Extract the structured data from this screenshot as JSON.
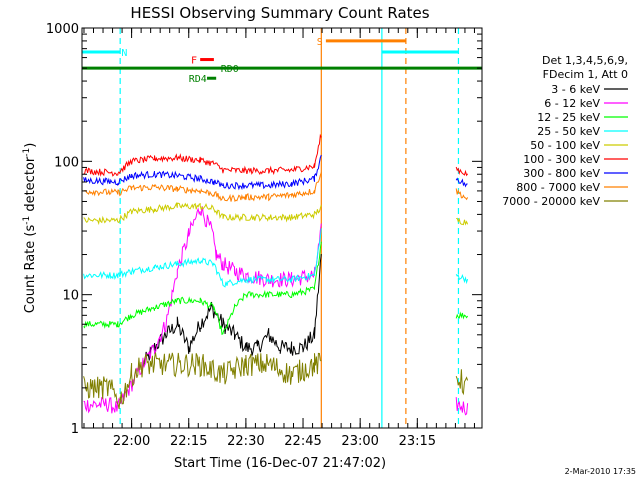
{
  "chart_data": {
    "type": "line",
    "title": "HESSI Observing Summary Count Rates",
    "xlabel": "Start Time (16-Dec-07 21:47:02)",
    "ylabel_prefix": "Count Rate (s",
    "ylabel_sup1": "-1",
    "ylabel_mid": " detector",
    "ylabel_sup2": "-1",
    "ylabel_suffix": ")",
    "y_scale": "log",
    "ylim": [
      1,
      1000
    ],
    "xlim": [
      21.783,
      23.533
    ],
    "y_ticks": [
      {
        "value": 1,
        "label": "1"
      },
      {
        "value": 10,
        "label": "10"
      },
      {
        "value": 100,
        "label": "100"
      },
      {
        "value": 1000,
        "label": "1000"
      }
    ],
    "x_ticks": [
      {
        "value": 22.0,
        "label": "22:00"
      },
      {
        "value": 22.25,
        "label": "22:15"
      },
      {
        "value": 22.5,
        "label": "22:30"
      },
      {
        "value": 22.75,
        "label": "22:45"
      },
      {
        "value": 23.0,
        "label": "23:00"
      },
      {
        "value": 23.25,
        "label": "23:15"
      }
    ],
    "legend_header": [
      "Det 1,3,4,5,6,9,",
      "FDecim 1, Att 0"
    ],
    "legend_placement": "right",
    "timestamp": "2-Mar-2010 17:35",
    "series": [
      {
        "name": "3 - 6 keV",
        "color": "#000000",
        "x": [
          21.79,
          21.95,
          22.0,
          22.05,
          22.1,
          22.15,
          22.2,
          22.25,
          22.3,
          22.35,
          22.4,
          22.45,
          22.5,
          22.55,
          22.6,
          22.65,
          22.7,
          22.75,
          22.8,
          22.83
        ],
        "y": [
          null,
          null,
          null,
          3,
          4,
          5,
          6,
          4,
          6,
          8,
          6,
          5,
          4,
          4,
          5,
          4,
          4,
          4,
          5,
          20
        ]
      },
      {
        "name": "6 - 12 keV",
        "color": "#ff00ff",
        "x": [
          21.79,
          21.9,
          21.94,
          22.05,
          22.1,
          22.15,
          22.2,
          22.25,
          22.3,
          22.35,
          22.37,
          22.4,
          22.45,
          22.5,
          22.6,
          22.7,
          22.8,
          22.83,
          23.42,
          23.47
        ],
        "y": [
          1.5,
          1.5,
          1.4,
          3,
          4,
          6,
          15,
          28,
          45,
          30,
          20,
          17,
          15,
          14,
          13,
          13,
          14,
          30,
          1.5,
          1.4
        ]
      },
      {
        "name": "12 - 25 keV",
        "color": "#00ff00",
        "x": [
          21.79,
          21.94,
          22.0,
          22.1,
          22.2,
          22.3,
          22.36,
          22.4,
          22.45,
          22.5,
          22.6,
          22.7,
          22.8,
          22.83,
          23.42,
          23.47
        ],
        "y": [
          6,
          6,
          7,
          8,
          9,
          9,
          8,
          5,
          8,
          10,
          10,
          10,
          11,
          25,
          7,
          7
        ]
      },
      {
        "name": "25 - 50 keV",
        "color": "#00ffff",
        "x": [
          21.79,
          21.94,
          22.0,
          22.1,
          22.2,
          22.3,
          22.36,
          22.4,
          22.5,
          22.6,
          22.7,
          22.8,
          22.83,
          23.42,
          23.47
        ],
        "y": [
          14,
          14,
          15,
          16,
          17,
          18,
          17,
          12,
          13,
          13,
          13,
          14,
          30,
          14,
          13
        ]
      },
      {
        "name": "50 - 100 keV",
        "color": "#cccc00",
        "x": [
          21.79,
          21.94,
          22.0,
          22.1,
          22.2,
          22.3,
          22.36,
          22.4,
          22.5,
          22.6,
          22.7,
          22.8,
          22.83,
          23.42,
          23.47
        ],
        "y": [
          36,
          36,
          42,
          44,
          46,
          46,
          44,
          38,
          38,
          38,
          38,
          40,
          45,
          36,
          35
        ]
      },
      {
        "name": "100 - 300 keV",
        "color": "#ff0000",
        "x": [
          21.79,
          21.94,
          22.0,
          22.1,
          22.2,
          22.3,
          22.36,
          22.4,
          22.5,
          22.6,
          22.7,
          22.8,
          22.83,
          23.42,
          23.47
        ],
        "y": [
          85,
          82,
          100,
          105,
          106,
          102,
          96,
          86,
          85,
          85,
          86,
          92,
          160,
          88,
          80
        ]
      },
      {
        "name": "300 - 800 keV",
        "color": "#0000ff",
        "x": [
          21.79,
          21.94,
          22.0,
          22.1,
          22.2,
          22.3,
          22.36,
          22.4,
          22.5,
          22.6,
          22.7,
          22.8,
          22.83,
          23.42,
          23.47
        ],
        "y": [
          72,
          70,
          78,
          80,
          78,
          74,
          70,
          66,
          66,
          66,
          68,
          74,
          110,
          75,
          65
        ]
      },
      {
        "name": "800 - 7000 keV",
        "color": "#ff8000",
        "x": [
          21.79,
          21.94,
          22.0,
          22.1,
          22.2,
          22.3,
          22.36,
          22.4,
          22.5,
          22.6,
          22.7,
          22.8,
          22.83,
          23.42,
          23.47
        ],
        "y": [
          60,
          58,
          63,
          64,
          62,
          60,
          57,
          52,
          54,
          54,
          56,
          60,
          85,
          60,
          52
        ]
      },
      {
        "name": "7000 - 20000 keV",
        "color": "#808000",
        "x": [
          21.79,
          21.9,
          21.95,
          22.0,
          22.05,
          22.1,
          22.2,
          22.3,
          22.4,
          22.5,
          22.6,
          22.7,
          22.8,
          22.83,
          23.42,
          23.47
        ],
        "y": [
          2,
          2,
          1.6,
          2.5,
          3,
          3,
          3,
          3,
          2.5,
          3,
          3,
          2.5,
          3,
          3,
          2.5,
          2
        ]
      }
    ],
    "flag_bars": [
      {
        "label": "N",
        "color": "#00ffff",
        "x0": 21.783,
        "x1": 21.95,
        "y": 660,
        "x_label": 21.955
      },
      {
        "label": "N",
        "color": "#00ffff",
        "x0": 23.095,
        "x1": 23.43,
        "y": 660,
        "x_label": null
      },
      {
        "label": "S",
        "color": "#ff8000",
        "x0": 22.85,
        "x1": 23.2,
        "y": 800,
        "x_label": 22.81
      },
      {
        "label": "F",
        "color": "#ff0000",
        "x0": 22.3,
        "x1": 22.36,
        "y": 580,
        "x_label": 22.26
      },
      {
        "label": "RD0",
        "color": "#008000",
        "x0": 21.783,
        "x1": 23.533,
        "y": 500,
        "x_label": 22.39
      },
      {
        "label": "RD4",
        "color": "#008000",
        "x0": 22.33,
        "x1": 22.37,
        "y": 420,
        "x_label": 22.25
      }
    ],
    "vlines": [
      {
        "x": 21.95,
        "color": "#00ffff",
        "style": "dashed"
      },
      {
        "x": 22.83,
        "color": "#ff8000",
        "style": "solid"
      },
      {
        "x": 23.095,
        "color": "#00ffff",
        "style": "solid"
      },
      {
        "x": 23.2,
        "color": "#ff8000",
        "style": "dashed"
      },
      {
        "x": 23.43,
        "color": "#00ffff",
        "style": "dashed"
      }
    ]
  }
}
